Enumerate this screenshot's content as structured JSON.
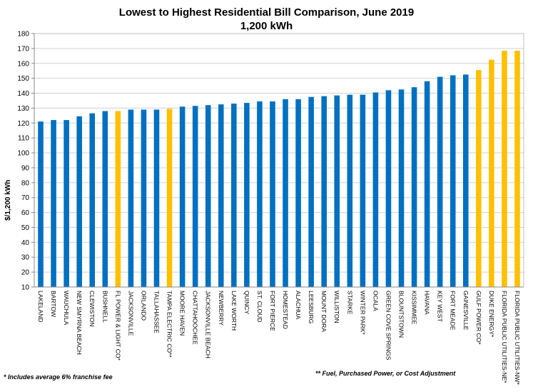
{
  "chart_data": {
    "type": "bar",
    "title": "Lowest  to Highest  Residential Bill Comparison, June 2019",
    "subtitle": "1,200 kWh",
    "ylabel": "$/1,200 kWh",
    "xlabel": "",
    "ylim": [
      10,
      180
    ],
    "yticks": [
      10,
      20,
      30,
      40,
      50,
      60,
      70,
      80,
      90,
      100,
      110,
      120,
      130,
      140,
      150,
      160,
      170,
      180
    ],
    "grid": true,
    "legend": "none",
    "colors": {
      "municipal": "#0070C0",
      "iou": "#FFC000"
    },
    "categories": [
      "LAKELAND",
      "BARTOW",
      "WAUCHULA",
      "NEW SMYRNA BEACH",
      "CLEWISTON",
      "BUSHNELL",
      "FL POWER & LIGHT CO*",
      "JACKSONVILLE",
      "ORLANDO",
      "TALLAHASSEE",
      "TAMPA ELECTRIC CO**",
      "MOORE HAVEN",
      "CHATTAHOOCHEE",
      "JACKSONVILLE BEACH",
      "NEWBERRY",
      "LAKE WORTH",
      "QUINCY",
      "ST. CLOUD",
      "FORT PIERCE",
      "HOMESTEAD",
      "ALACHUA",
      "LEESBURG",
      "MOUNT DORA",
      "WILLISTON",
      "STARKE",
      "WINTER PARK*",
      "OCALA",
      "GREEN COVE SPRINGS",
      "BLOUNTSTOWN",
      "KISSIMMEE",
      "HAVANA",
      "KEY WEST",
      "FORT MEADE",
      "GAINESVILLE",
      "GULF POWER CO*",
      "DUKE ENERGY*",
      "FLORIDA PUBLIC UTILITIES-NE*",
      "FLORIDA PUBLIC UTILITIES-NW*"
    ],
    "values": [
      121,
      122,
      122,
      124.5,
      126.5,
      128,
      128,
      129,
      129,
      129,
      129.5,
      131,
      131.5,
      132,
      132.5,
      133,
      133.5,
      134.5,
      134.5,
      136,
      136,
      137.5,
      138,
      138.5,
      139,
      139,
      140.5,
      142,
      142.5,
      144,
      148,
      151,
      152,
      152.5,
      155.5,
      162.5,
      168.5,
      168.5
    ],
    "highlight": [
      false,
      false,
      false,
      false,
      false,
      false,
      true,
      false,
      false,
      false,
      true,
      false,
      false,
      false,
      false,
      false,
      false,
      false,
      false,
      false,
      false,
      false,
      false,
      false,
      false,
      false,
      false,
      false,
      false,
      false,
      false,
      false,
      false,
      false,
      true,
      true,
      true,
      true
    ]
  },
  "footnotes": {
    "left": "* Includes average 6% franchise fee",
    "right": "** Fuel, Purchased Power, or Cost Adjustment"
  }
}
